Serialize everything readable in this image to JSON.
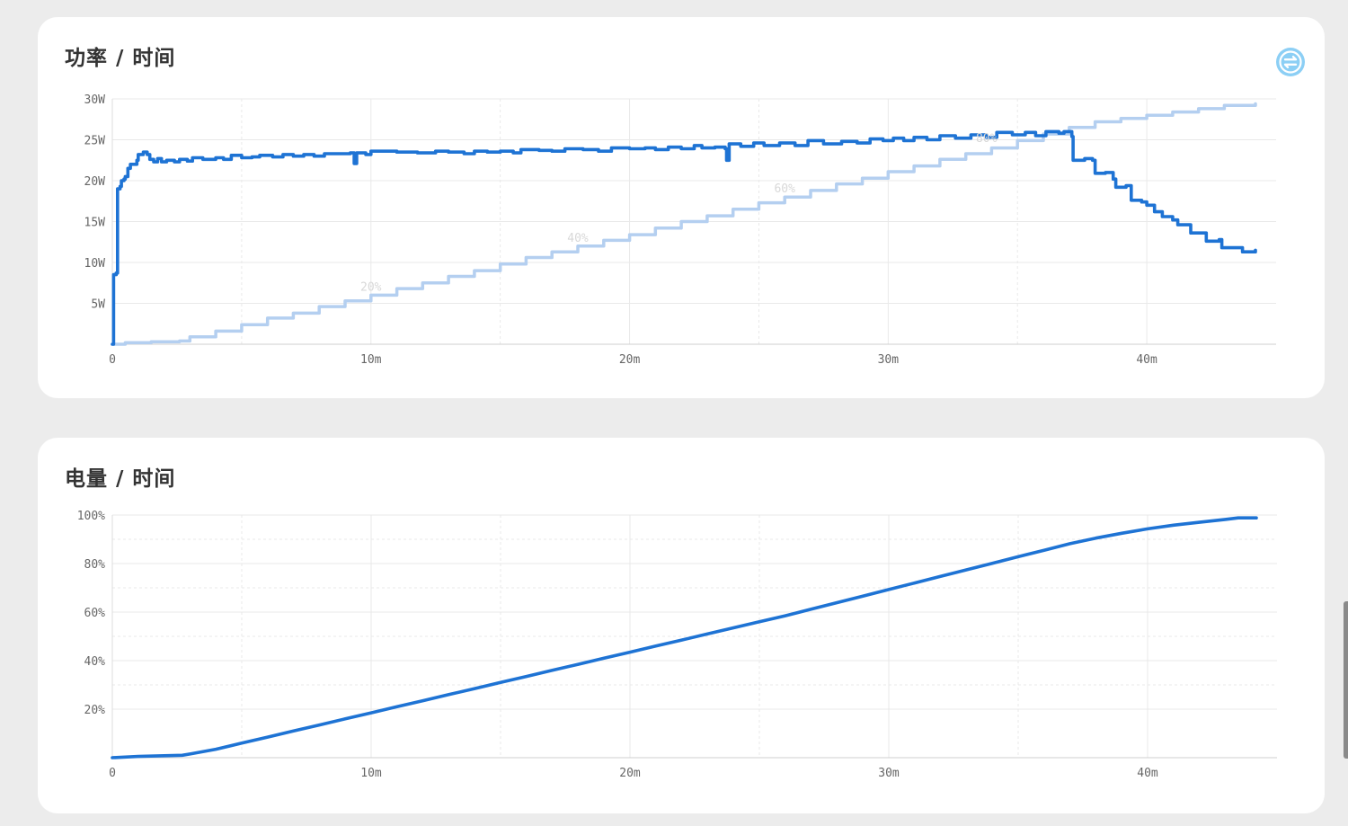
{
  "colors": {
    "page_bg": "#ececec",
    "card_bg": "#ffffff",
    "accent": "#1e73d4",
    "accent_light": "#b4cff0",
    "grid": "#e9e9e9",
    "toggle": "#8ccff5"
  },
  "power_card": {
    "title": "功率 / 时间",
    "toggle_icon": "swap-arrows-icon"
  },
  "battery_card": {
    "title": "电量 / 时间"
  },
  "chart_data": [
    {
      "type": "line",
      "title": "功率 / 时间",
      "xlim": [
        0,
        45
      ],
      "ylim": [
        0,
        30
      ],
      "x_ticks": [
        {
          "value": 0,
          "label": "0"
        },
        {
          "value": 10,
          "label": "10m"
        },
        {
          "value": 20,
          "label": "20m"
        },
        {
          "value": 30,
          "label": "30m"
        },
        {
          "value": 40,
          "label": "40m"
        }
      ],
      "y_ticks": [
        {
          "value": 5,
          "label": "5W"
        },
        {
          "value": 10,
          "label": "10W"
        },
        {
          "value": 15,
          "label": "15W"
        },
        {
          "value": 20,
          "label": "20W"
        },
        {
          "value": 25,
          "label": "25W"
        },
        {
          "value": 30,
          "label": "30W"
        }
      ],
      "grid": true,
      "series": [
        {
          "role": "power",
          "unit": "W",
          "color": "#1e73d4",
          "points": [
            [
              0,
              0
            ],
            [
              0.05,
              8.5
            ],
            [
              0.15,
              8.7
            ],
            [
              0.2,
              19
            ],
            [
              0.3,
              19.3
            ],
            [
              0.35,
              20
            ],
            [
              0.45,
              20.2
            ],
            [
              0.5,
              20.5
            ],
            [
              0.6,
              21.5
            ],
            [
              0.7,
              22
            ],
            [
              0.85,
              22
            ],
            [
              0.95,
              22.5
            ],
            [
              1.0,
              23.2
            ],
            [
              1.2,
              23.5
            ],
            [
              1.35,
              23.2
            ],
            [
              1.45,
              22.6
            ],
            [
              1.6,
              22.3
            ],
            [
              1.75,
              22.7
            ],
            [
              1.9,
              22.3
            ],
            [
              2.1,
              22.5
            ],
            [
              2.4,
              22.3
            ],
            [
              2.6,
              22.6
            ],
            [
              2.9,
              22.4
            ],
            [
              3.1,
              22.8
            ],
            [
              3.5,
              22.6
            ],
            [
              4.0,
              22.8
            ],
            [
              4.3,
              22.6
            ],
            [
              4.6,
              23.1
            ],
            [
              5.0,
              22.8
            ],
            [
              5.4,
              22.9
            ],
            [
              5.7,
              23.1
            ],
            [
              6.2,
              22.9
            ],
            [
              6.6,
              23.2
            ],
            [
              7.0,
              23.0
            ],
            [
              7.4,
              23.2
            ],
            [
              7.8,
              23.0
            ],
            [
              8.2,
              23.3
            ],
            [
              8.8,
              23.3
            ],
            [
              9.2,
              23.4
            ],
            [
              9.35,
              22.1
            ],
            [
              9.45,
              23.4
            ],
            [
              9.8,
              23.2
            ],
            [
              10.0,
              23.6
            ],
            [
              11.0,
              23.5
            ],
            [
              11.8,
              23.4
            ],
            [
              12.5,
              23.6
            ],
            [
              13.0,
              23.5
            ],
            [
              13.6,
              23.3
            ],
            [
              14.0,
              23.6
            ],
            [
              14.5,
              23.5
            ],
            [
              15.0,
              23.6
            ],
            [
              15.5,
              23.4
            ],
            [
              15.8,
              23.8
            ],
            [
              16.5,
              23.7
            ],
            [
              17.0,
              23.6
            ],
            [
              17.5,
              23.9
            ],
            [
              18.2,
              23.8
            ],
            [
              18.8,
              23.6
            ],
            [
              19.3,
              24.0
            ],
            [
              20.0,
              23.9
            ],
            [
              20.6,
              24.0
            ],
            [
              21.0,
              23.8
            ],
            [
              21.5,
              24.1
            ],
            [
              22.0,
              23.9
            ],
            [
              22.5,
              24.3
            ],
            [
              22.8,
              24.0
            ],
            [
              23.3,
              24.1
            ],
            [
              23.7,
              23.9
            ],
            [
              23.75,
              22.5
            ],
            [
              23.85,
              24.5
            ],
            [
              24.3,
              24.2
            ],
            [
              24.8,
              24.6
            ],
            [
              25.2,
              24.3
            ],
            [
              25.8,
              24.6
            ],
            [
              26.4,
              24.3
            ],
            [
              26.9,
              24.9
            ],
            [
              27.5,
              24.5
            ],
            [
              28.2,
              24.8
            ],
            [
              28.8,
              24.6
            ],
            [
              29.3,
              25.1
            ],
            [
              29.8,
              24.9
            ],
            [
              30.2,
              25.2
            ],
            [
              30.6,
              24.9
            ],
            [
              31.0,
              25.3
            ],
            [
              31.5,
              25.0
            ],
            [
              32.0,
              25.5
            ],
            [
              32.6,
              25.2
            ],
            [
              33.2,
              25.6
            ],
            [
              33.8,
              25.3
            ],
            [
              34.2,
              25.9
            ],
            [
              34.8,
              25.6
            ],
            [
              35.3,
              25.9
            ],
            [
              35.7,
              25.5
            ],
            [
              36.1,
              26.0
            ],
            [
              36.6,
              25.8
            ],
            [
              36.8,
              26.0
            ],
            [
              37.1,
              25.4
            ],
            [
              37.15,
              22.5
            ],
            [
              37.6,
              22.7
            ],
            [
              37.9,
              22.5
            ],
            [
              38.0,
              20.9
            ],
            [
              38.4,
              21.0
            ],
            [
              38.7,
              20.2
            ],
            [
              38.8,
              19.2
            ],
            [
              39.2,
              19.4
            ],
            [
              39.4,
              17.6
            ],
            [
              39.8,
              17.4
            ],
            [
              40.0,
              17.0
            ],
            [
              40.3,
              16.2
            ],
            [
              40.6,
              15.6
            ],
            [
              41.0,
              15.2
            ],
            [
              41.2,
              14.6
            ],
            [
              41.6,
              14.6
            ],
            [
              41.7,
              13.6
            ],
            [
              42.2,
              13.6
            ],
            [
              42.3,
              12.6
            ],
            [
              42.8,
              12.8
            ],
            [
              42.9,
              11.8
            ],
            [
              43.6,
              11.8
            ],
            [
              43.7,
              11.3
            ],
            [
              44.0,
              11.3
            ],
            [
              44.2,
              11.5
            ]
          ]
        },
        {
          "role": "battery",
          "unit": "%",
          "color": "#b4cff0",
          "points": [
            [
              0,
              0
            ],
            [
              0.5,
              0.2
            ],
            [
              1.5,
              0.3
            ],
            [
              2.4,
              0.3
            ],
            [
              2.6,
              0.4
            ],
            [
              3.0,
              0.9
            ],
            [
              4.0,
              1.6
            ],
            [
              5.0,
              2.4
            ],
            [
              6.0,
              3.2
            ],
            [
              7.0,
              3.8
            ],
            [
              8.0,
              4.6
            ],
            [
              9.0,
              5.3
            ],
            [
              10.0,
              6.0
            ],
            [
              11.0,
              6.8
            ],
            [
              12.0,
              7.5
            ],
            [
              13.0,
              8.3
            ],
            [
              14.0,
              9.0
            ],
            [
              15.0,
              9.8
            ],
            [
              16.0,
              10.6
            ],
            [
              17.0,
              11.3
            ],
            [
              18.0,
              12.0
            ],
            [
              19.0,
              12.7
            ],
            [
              20.0,
              13.4
            ],
            [
              21.0,
              14.2
            ],
            [
              22.0,
              15.0
            ],
            [
              23.0,
              15.7
            ],
            [
              24.0,
              16.5
            ],
            [
              25.0,
              17.3
            ],
            [
              26.0,
              18.0
            ],
            [
              27.0,
              18.8
            ],
            [
              28.0,
              19.6
            ],
            [
              29.0,
              20.3
            ],
            [
              30.0,
              21.1
            ],
            [
              31.0,
              21.8
            ],
            [
              32.0,
              22.6
            ],
            [
              33.0,
              23.3
            ],
            [
              34.0,
              24.0
            ],
            [
              35.0,
              24.9
            ],
            [
              36.0,
              25.7
            ],
            [
              37.0,
              26.5
            ],
            [
              38.0,
              27.2
            ],
            [
              39.0,
              27.6
            ],
            [
              40.0,
              28.0
            ],
            [
              41.0,
              28.4
            ],
            [
              42.0,
              28.8
            ],
            [
              43.0,
              29.2
            ],
            [
              44.2,
              29.4
            ]
          ]
        }
      ],
      "annotations": [
        {
          "x": 10.0,
          "y": 6.0,
          "text": "20%"
        },
        {
          "x": 18.0,
          "y": 12.0,
          "text": "40%"
        },
        {
          "x": 26.0,
          "y": 18.0,
          "text": "60%"
        },
        {
          "x": 33.8,
          "y": 24.2,
          "text": "80%"
        }
      ]
    },
    {
      "type": "line",
      "title": "电量 / 时间",
      "xlim": [
        0,
        45
      ],
      "ylim": [
        0,
        100
      ],
      "x_ticks": [
        {
          "value": 0,
          "label": "0"
        },
        {
          "value": 10,
          "label": "10m"
        },
        {
          "value": 20,
          "label": "20m"
        },
        {
          "value": 30,
          "label": "30m"
        },
        {
          "value": 40,
          "label": "40m"
        }
      ],
      "y_ticks": [
        {
          "value": 20,
          "label": "20%"
        },
        {
          "value": 40,
          "label": "40%"
        },
        {
          "value": 60,
          "label": "60%"
        },
        {
          "value": 80,
          "label": "80%"
        },
        {
          "value": 100,
          "label": "100%"
        }
      ],
      "grid": true,
      "series": [
        {
          "role": "battery",
          "unit": "%",
          "color": "#1e73d4",
          "points": [
            [
              0,
              0
            ],
            [
              1,
              0.5
            ],
            [
              2,
              0.8
            ],
            [
              2.7,
              1.0
            ],
            [
              3,
              1.5
            ],
            [
              4,
              3.5
            ],
            [
              5,
              6
            ],
            [
              6,
              8.5
            ],
            [
              7,
              11
            ],
            [
              8,
              13.5
            ],
            [
              9,
              16
            ],
            [
              10,
              18.5
            ],
            [
              11,
              21
            ],
            [
              12,
              23.5
            ],
            [
              13,
              26
            ],
            [
              14,
              28.5
            ],
            [
              15,
              31
            ],
            [
              16,
              33.5
            ],
            [
              17,
              36
            ],
            [
              18,
              38.5
            ],
            [
              19,
              41
            ],
            [
              20,
              43.5
            ],
            [
              21,
              46
            ],
            [
              22,
              48.5
            ],
            [
              23,
              51
            ],
            [
              24,
              53.5
            ],
            [
              25,
              56
            ],
            [
              26,
              58.5
            ],
            [
              27,
              61.2
            ],
            [
              28,
              63.9
            ],
            [
              29,
              66.6
            ],
            [
              30,
              69.3
            ],
            [
              31,
              72
            ],
            [
              32,
              74.7
            ],
            [
              33,
              77.4
            ],
            [
              34,
              80.1
            ],
            [
              35,
              82.8
            ],
            [
              36,
              85.5
            ],
            [
              37,
              88.2
            ],
            [
              38,
              90.5
            ],
            [
              39,
              92.5
            ],
            [
              40,
              94.3
            ],
            [
              41,
              95.8
            ],
            [
              42,
              97.0
            ],
            [
              43,
              98.2
            ],
            [
              43.5,
              98.8
            ],
            [
              44.2,
              98.8
            ]
          ]
        }
      ]
    }
  ]
}
